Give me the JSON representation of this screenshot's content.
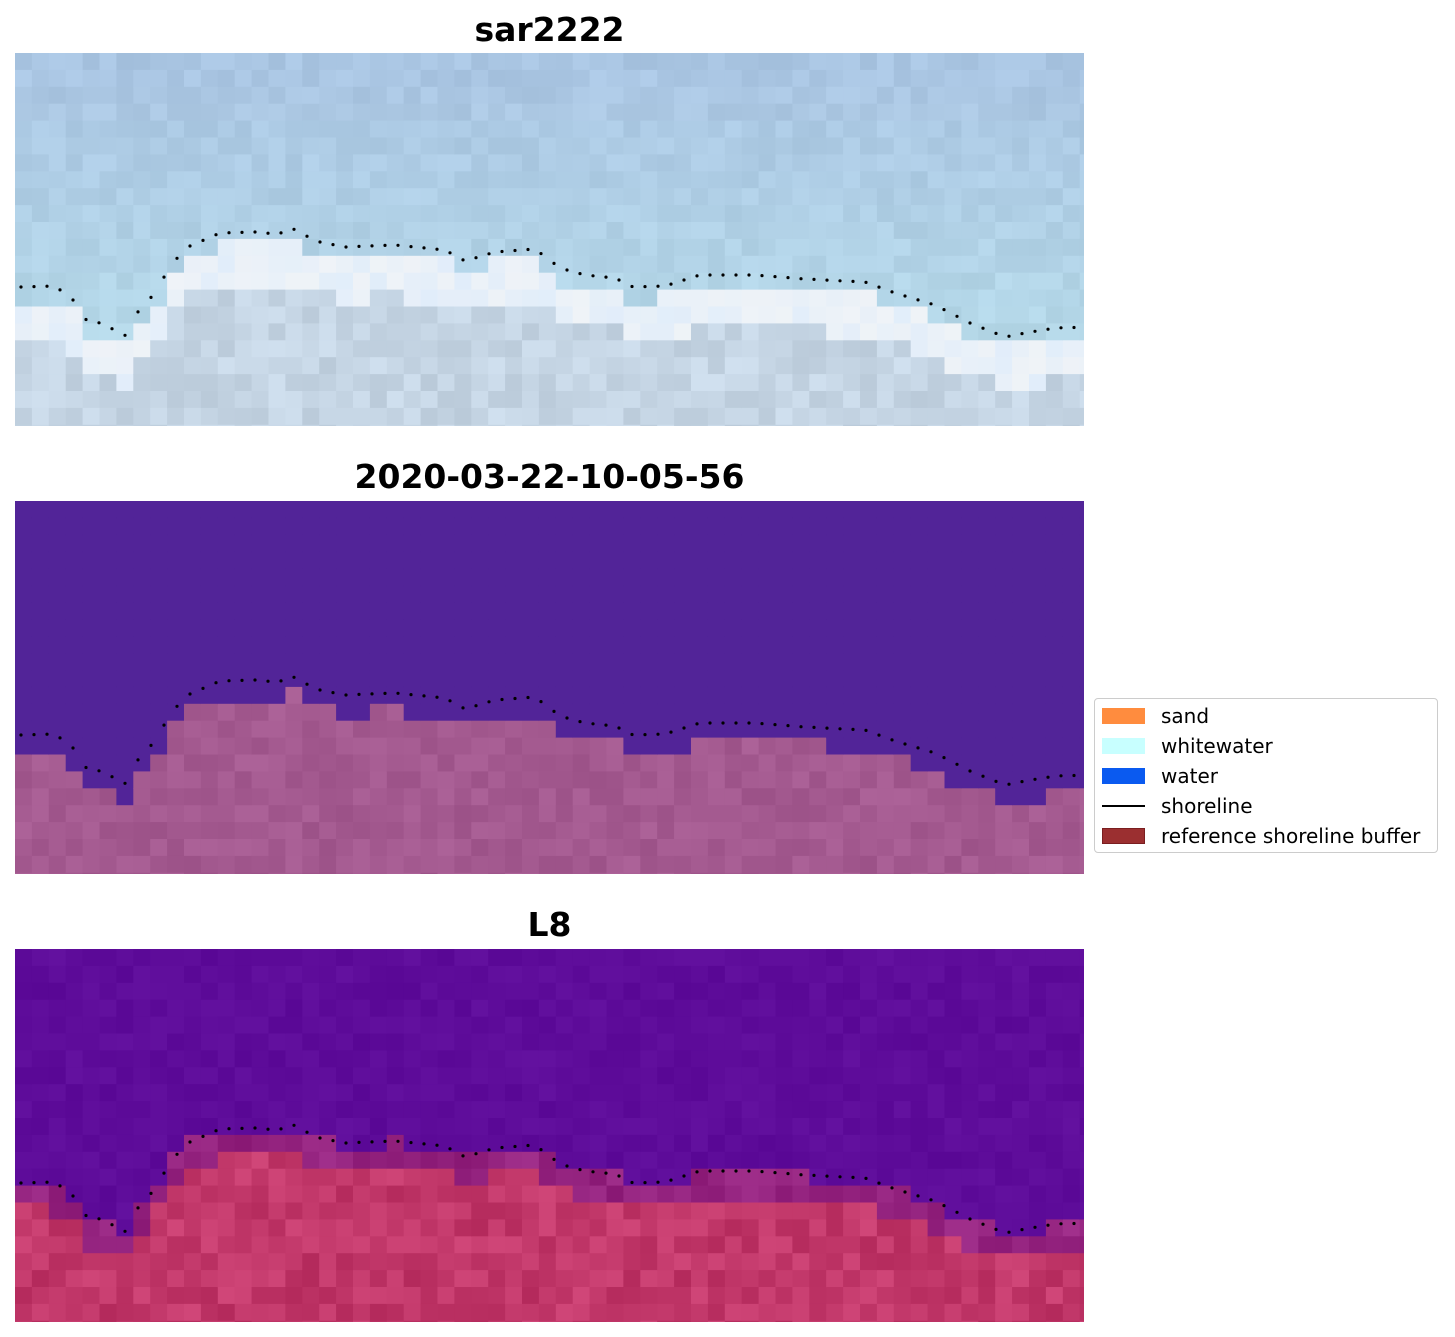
{
  "panels": [
    {
      "title": "sar2222",
      "style": "rgb"
    },
    {
      "title": "2020-03-22-10-05-56",
      "style": "classified"
    },
    {
      "title": "L8",
      "style": "falsecolor"
    }
  ],
  "legend": {
    "items": [
      {
        "label": "sand",
        "color": "#ff8c3e",
        "kind": "patch"
      },
      {
        "label": "whitewater",
        "color": "#c8ffff",
        "kind": "patch"
      },
      {
        "label": "water",
        "color": "#0a5af0",
        "kind": "patch"
      },
      {
        "label": "shoreline",
        "color": "#000000",
        "kind": "line"
      },
      {
        "label": "reference shoreline buffer",
        "color": "#9b2f30",
        "kind": "patch",
        "edge": "#7a1e20"
      }
    ]
  },
  "colors": {
    "rgb_sky": "#a9c4e2",
    "rgb_foam": "#f4f8fc",
    "rgb_sand": "#c5d5e4",
    "class_water": "#522498",
    "class_land": "#a45a90",
    "fc_water": "#5e0c9a",
    "fc_land": "#c2386a",
    "shoreline_marker": "#000000"
  }
}
